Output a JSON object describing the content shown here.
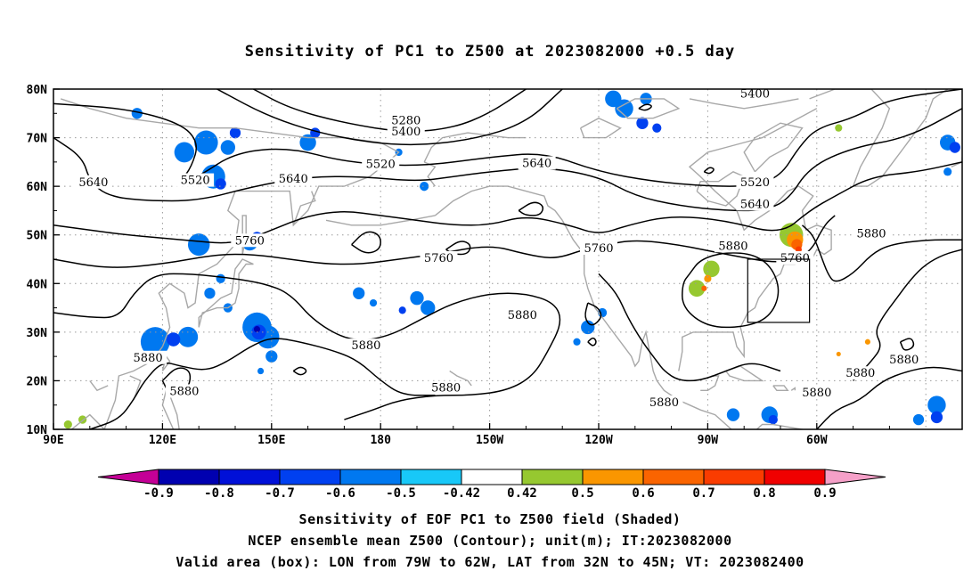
{
  "title": "Sensitivity of PC1 to Z500 at 2023082000 +0.5 day",
  "map": {
    "lat_labels": [
      "80N",
      "70N",
      "60N",
      "50N",
      "40N",
      "30N",
      "20N",
      "10N"
    ],
    "lon_labels": [
      "90E",
      "120E",
      "150E",
      "180",
      "150W",
      "120W",
      "90W",
      "60W"
    ],
    "contour_labels": [
      {
        "text": "5280",
        "lon": 187,
        "lat": 73.5
      },
      {
        "text": "5400",
        "lon": 187,
        "lat": 71.2
      },
      {
        "text": "5400",
        "lon": 283,
        "lat": 79
      },
      {
        "text": "5520",
        "lon": 180,
        "lat": 64.5
      },
      {
        "text": "5520",
        "lon": 129,
        "lat": 61.2
      },
      {
        "text": "5520",
        "lon": 283,
        "lat": 60.8
      },
      {
        "text": "5640",
        "lon": 101,
        "lat": 60.8
      },
      {
        "text": "5640",
        "lon": 156,
        "lat": 61.5
      },
      {
        "text": "5640",
        "lon": 223,
        "lat": 64.7
      },
      {
        "text": "5640",
        "lon": 283,
        "lat": 56.3
      },
      {
        "text": "5760",
        "lon": 144,
        "lat": 48.8
      },
      {
        "text": "5760",
        "lon": 196,
        "lat": 45.2
      },
      {
        "text": "5760",
        "lon": 240,
        "lat": 47.2
      },
      {
        "text": "5760",
        "lon": 294,
        "lat": 45.2
      },
      {
        "text": "5880",
        "lon": 277,
        "lat": 47.7
      },
      {
        "text": "5880",
        "lon": 315,
        "lat": 50.2
      },
      {
        "text": "5880",
        "lon": 219,
        "lat": 33.5
      },
      {
        "text": "5880",
        "lon": 176,
        "lat": 27.2
      },
      {
        "text": "5880",
        "lon": 116,
        "lat": 24.7
      },
      {
        "text": "5880",
        "lon": 126,
        "lat": 17.8
      },
      {
        "text": "5880",
        "lon": 198,
        "lat": 18.5
      },
      {
        "text": "5880",
        "lon": 258,
        "lat": 15.5
      },
      {
        "text": "5880",
        "lon": 300,
        "lat": 17.5
      },
      {
        "text": "5880",
        "lon": 312,
        "lat": 21.5
      },
      {
        "text": "5880",
        "lon": 324,
        "lat": 24.3
      }
    ],
    "valid_box": {
      "lon_min": 281,
      "lon_max": 298,
      "lat_min": 32,
      "lat_max": 45
    },
    "shaded_patches": [
      {
        "lon": 118,
        "lat": 28,
        "r": 3.2,
        "v": -0.5
      },
      {
        "lon": 127,
        "lat": 29,
        "r": 2.2,
        "v": -0.5
      },
      {
        "lon": 123,
        "lat": 28.5,
        "r": 1.5,
        "v": -0.6
      },
      {
        "lon": 133,
        "lat": 38,
        "r": 1.2,
        "v": -0.5
      },
      {
        "lon": 136,
        "lat": 41,
        "r": 1.0,
        "v": -0.5
      },
      {
        "lon": 138,
        "lat": 35,
        "r": 1.0,
        "v": -0.5
      },
      {
        "lon": 146,
        "lat": 31,
        "r": 3.2,
        "v": -0.5
      },
      {
        "lon": 149,
        "lat": 29,
        "r": 2.5,
        "v": -0.5
      },
      {
        "lon": 146.5,
        "lat": 30,
        "r": 1.6,
        "v": -0.6
      },
      {
        "lon": 146,
        "lat": 30.6,
        "r": 0.7,
        "v": -0.8
      },
      {
        "lon": 150,
        "lat": 25,
        "r": 1.3,
        "v": -0.5
      },
      {
        "lon": 147,
        "lat": 22,
        "r": 0.7,
        "v": -0.5
      },
      {
        "lon": 130,
        "lat": 48,
        "r": 2.4,
        "v": -0.5
      },
      {
        "lon": 144,
        "lat": 48.5,
        "r": 1.8,
        "v": -0.5
      },
      {
        "lon": 146,
        "lat": 49.5,
        "r": 1.2,
        "v": -0.6
      },
      {
        "lon": 134,
        "lat": 62,
        "r": 2.6,
        "v": -0.5
      },
      {
        "lon": 136,
        "lat": 60.5,
        "r": 1.2,
        "v": -0.6
      },
      {
        "lon": 126,
        "lat": 67,
        "r": 2.2,
        "v": -0.5
      },
      {
        "lon": 132,
        "lat": 69,
        "r": 2.6,
        "v": -0.5
      },
      {
        "lon": 140,
        "lat": 71,
        "r": 1.2,
        "v": -0.6
      },
      {
        "lon": 138,
        "lat": 68,
        "r": 1.6,
        "v": -0.5
      },
      {
        "lon": 160,
        "lat": 69,
        "r": 1.8,
        "v": -0.5
      },
      {
        "lon": 162,
        "lat": 71,
        "r": 1.1,
        "v": -0.6
      },
      {
        "lon": 113,
        "lat": 75,
        "r": 1.2,
        "v": -0.5
      },
      {
        "lon": 174,
        "lat": 38,
        "r": 1.3,
        "v": -0.5
      },
      {
        "lon": 178,
        "lat": 36,
        "r": 0.8,
        "v": -0.5
      },
      {
        "lon": 190,
        "lat": 37,
        "r": 1.5,
        "v": -0.5
      },
      {
        "lon": 193,
        "lat": 35,
        "r": 1.6,
        "v": -0.5
      },
      {
        "lon": 186,
        "lat": 34.5,
        "r": 0.8,
        "v": -0.6
      },
      {
        "lon": 192,
        "lat": 60,
        "r": 1.0,
        "v": -0.5
      },
      {
        "lon": 185,
        "lat": 67,
        "r": 0.8,
        "v": -0.5
      },
      {
        "lon": 247,
        "lat": 76,
        "r": 2.0,
        "v": -0.5
      },
      {
        "lon": 244,
        "lat": 78,
        "r": 1.8,
        "v": -0.5
      },
      {
        "lon": 252,
        "lat": 73,
        "r": 1.3,
        "v": -0.6
      },
      {
        "lon": 256,
        "lat": 72,
        "r": 1.0,
        "v": -0.6
      },
      {
        "lon": 253,
        "lat": 78,
        "r": 1.3,
        "v": -0.5
      },
      {
        "lon": 237,
        "lat": 31,
        "r": 1.5,
        "v": -0.5
      },
      {
        "lon": 241,
        "lat": 34,
        "r": 1.0,
        "v": -0.5
      },
      {
        "lon": 234,
        "lat": 28,
        "r": 0.8,
        "v": -0.5
      },
      {
        "lon": 336,
        "lat": 69,
        "r": 1.7,
        "v": -0.5
      },
      {
        "lon": 338,
        "lat": 68,
        "r": 1.2,
        "v": -0.6
      },
      {
        "lon": 336,
        "lat": 63,
        "r": 0.9,
        "v": -0.5
      },
      {
        "lon": 287,
        "lat": 13,
        "r": 1.8,
        "v": -0.5
      },
      {
        "lon": 288,
        "lat": 12,
        "r": 1.0,
        "v": -0.6
      },
      {
        "lon": 277,
        "lat": 13,
        "r": 1.4,
        "v": -0.5
      },
      {
        "lon": 333,
        "lat": 15,
        "r": 2.0,
        "v": -0.5
      },
      {
        "lon": 333,
        "lat": 12.5,
        "r": 1.3,
        "v": -0.6
      },
      {
        "lon": 328,
        "lat": 12,
        "r": 1.2,
        "v": -0.5
      },
      {
        "lon": 94,
        "lat": 11,
        "r": 0.9,
        "v": 0.45
      },
      {
        "lon": 98,
        "lat": 12,
        "r": 0.9,
        "v": 0.45
      },
      {
        "lon": 271,
        "lat": 43,
        "r": 1.8,
        "v": 0.45
      },
      {
        "lon": 267,
        "lat": 39,
        "r": 1.8,
        "v": 0.45
      },
      {
        "lon": 270,
        "lat": 41,
        "r": 0.8,
        "v": 0.55
      },
      {
        "lon": 269,
        "lat": 39,
        "r": 0.6,
        "v": 0.65
      },
      {
        "lon": 293,
        "lat": 50,
        "r": 2.6,
        "v": 0.45
      },
      {
        "lon": 294,
        "lat": 49,
        "r": 1.8,
        "v": 0.55
      },
      {
        "lon": 294.5,
        "lat": 48,
        "r": 1.2,
        "v": 0.65
      },
      {
        "lon": 295,
        "lat": 47,
        "r": 0.7,
        "v": 0.75
      },
      {
        "lon": 306,
        "lat": 72,
        "r": 0.8,
        "v": 0.45
      },
      {
        "lon": 306,
        "lat": 25.5,
        "r": 0.5,
        "v": 0.55
      },
      {
        "lon": 314,
        "lat": 28,
        "r": 0.6,
        "v": 0.55
      }
    ]
  },
  "colorbar": {
    "colors": [
      "#c40096",
      "#0000b0",
      "#0010d8",
      "#0040f0",
      "#0078f0",
      "#18c8f8",
      "#ffffff",
      "#96c830",
      "#fa9600",
      "#fa6400",
      "#fa3c00",
      "#f00000",
      "#f5a0c8"
    ],
    "labels": [
      "-0.9",
      "-0.8",
      "-0.7",
      "-0.6",
      "-0.5",
      "-0.42",
      "0.42",
      "0.5",
      "0.6",
      "0.7",
      "0.8",
      "0.9"
    ]
  },
  "caption": {
    "line1": "Sensitivity of EOF PC1 to Z500 field (Shaded)",
    "line2": "NCEP ensemble mean Z500 (Contour); unit(m); IT:2023082000",
    "line3": "Valid area (box): LON from 79W to 62W, LAT from 32N to 45N; VT: 2023082400"
  }
}
